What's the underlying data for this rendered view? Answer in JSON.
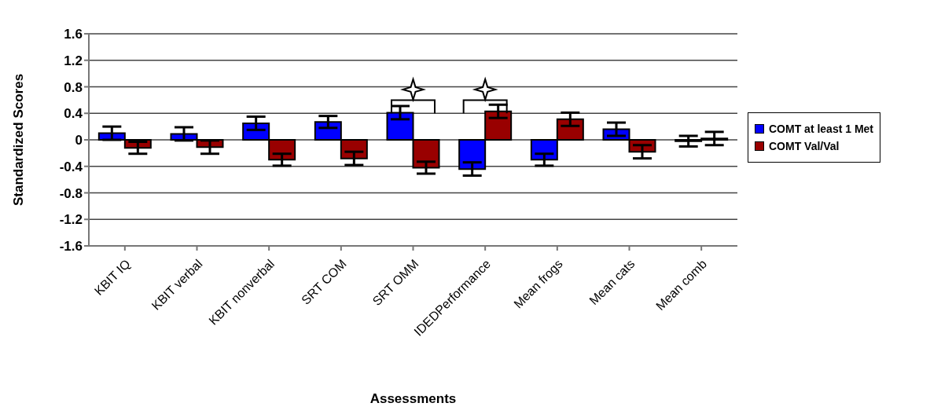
{
  "chart_data": {
    "type": "bar",
    "xlabel": "Assessments",
    "ylabel": "Standardized Scores",
    "categories": [
      "KBIT IQ",
      "KBIT verbal",
      "KBIT nonverbal",
      "SRT COM",
      "SRT OMM",
      "IDEDPerformance",
      "Mean frogs",
      "Mean cats",
      "Mean comb"
    ],
    "series": [
      {
        "name": "COMT at least 1 Met",
        "color": "#0000ff",
        "values": [
          0.1,
          0.09,
          0.25,
          0.27,
          0.41,
          -0.44,
          -0.3,
          0.16,
          -0.02
        ],
        "errors": [
          0.1,
          0.1,
          0.1,
          0.09,
          0.1,
          0.1,
          0.09,
          0.1,
          0.08
        ]
      },
      {
        "name": "COMT Val/Val",
        "color": "#990000",
        "values": [
          -0.12,
          -0.11,
          -0.3,
          -0.28,
          -0.42,
          0.43,
          0.31,
          -0.18,
          0.02
        ],
        "errors": [
          0.09,
          0.1,
          0.09,
          0.1,
          0.09,
          0.1,
          0.1,
          0.1,
          0.1
        ]
      }
    ],
    "ylim": [
      -1.6,
      1.6
    ],
    "yticks": [
      -1.6,
      -1.2,
      -0.8,
      -0.4,
      0,
      0.4,
      0.8,
      1.2,
      1.6
    ],
    "grid": "y",
    "legend": "right"
  }
}
